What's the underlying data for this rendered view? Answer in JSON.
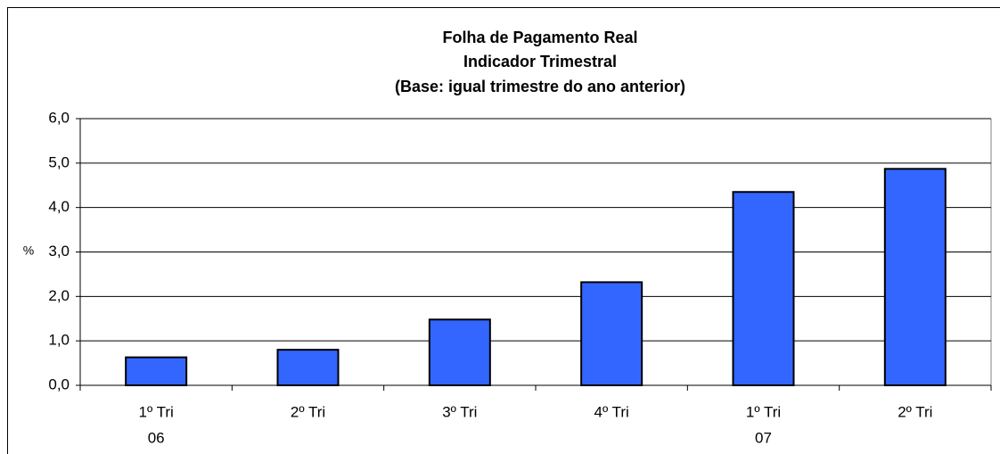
{
  "chart_data": {
    "type": "bar",
    "title": "Folha de Pagamento Real",
    "subtitle": [
      "Indicador Trimestral",
      "(Base: igual trimestre do ano anterior)"
    ],
    "y_label": "%",
    "categories": [
      "1º Tri",
      "2º Tri",
      "3º Tri",
      "4º Tri",
      "1º Tri",
      "2º Tri"
    ],
    "group_labels": [
      "06",
      null,
      null,
      null,
      "07",
      null
    ],
    "values": [
      0.63,
      0.8,
      1.48,
      2.32,
      4.35,
      4.87
    ],
    "color": "#3366ff",
    "ylim": [
      0,
      6
    ],
    "yticks": [
      {
        "value": 0,
        "label": "0,0"
      },
      {
        "value": 1,
        "label": "1,0"
      },
      {
        "value": 2,
        "label": "2,0"
      },
      {
        "value": 3,
        "label": "3,0"
      },
      {
        "value": 4,
        "label": "4,0"
      },
      {
        "value": 5,
        "label": "5,0"
      },
      {
        "value": 6,
        "label": "6,0"
      }
    ],
    "grid": true
  }
}
